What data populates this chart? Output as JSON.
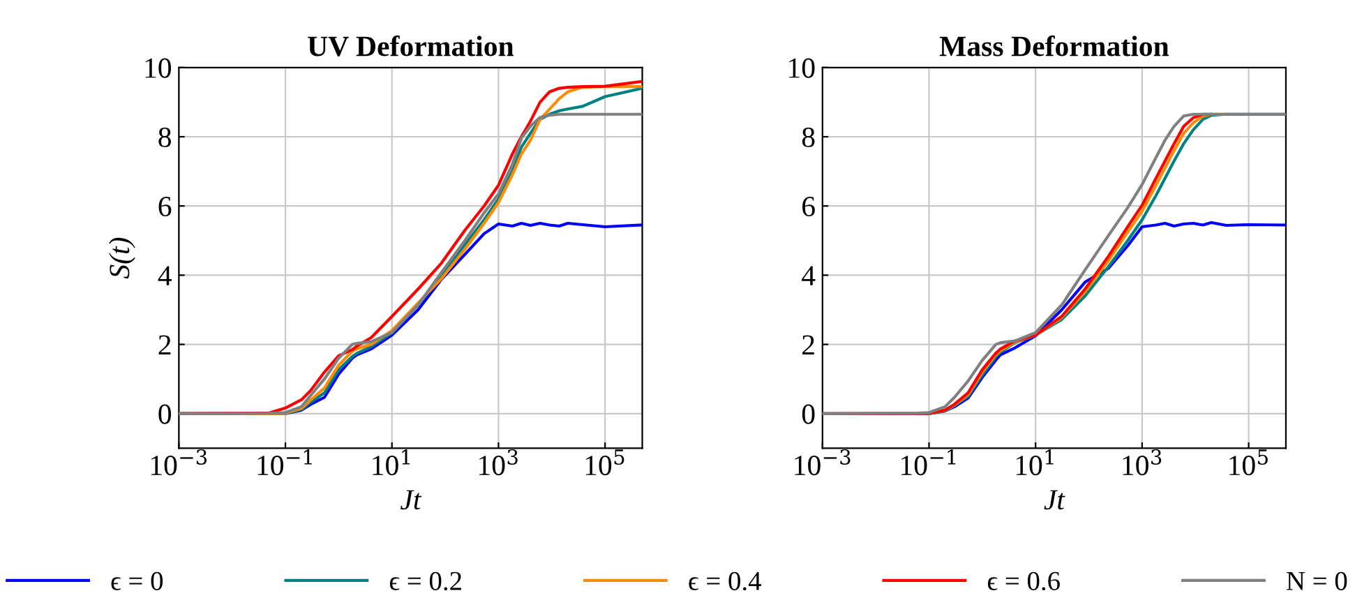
{
  "chart_data": [
    {
      "type": "line",
      "title": "UV Deformation",
      "xlabel": "Jt",
      "ylabel": "S(t)",
      "log": "x",
      "grid": true,
      "legend": "bottom",
      "line_style": "solid",
      "marker": "none",
      "xlim": [
        0.001,
        500000
      ],
      "ylim": [
        -1,
        10
      ],
      "xticks": [
        {
          "value": 0.001,
          "label": "10$^{−3}$"
        },
        {
          "value": 0.1,
          "label": "10$^{−1}$"
        },
        {
          "value": 10,
          "label": "10$^{1}$"
        },
        {
          "value": 1000,
          "label": "10$^{3}$"
        },
        {
          "value": 100000,
          "label": "10$^{5}$"
        }
      ],
      "yticks": [
        0,
        2,
        4,
        6,
        8,
        10
      ],
      "x": [
        0.001,
        0.05,
        0.1,
        0.2,
        0.3,
        0.54,
        1,
        1.8,
        2.2,
        4.1,
        10,
        31,
        85,
        234,
        537,
        1000,
        1820,
        2690,
        3980,
        6030,
        9120,
        13800,
        20000,
        38000,
        100000,
        500000
      ],
      "series": [
        {
          "name": "ϵ = 0",
          "color": "#0000ff",
          "values": [
            0,
            0,
            0,
            0.1,
            0.27,
            0.47,
            1.14,
            1.6,
            1.7,
            1.87,
            2.27,
            3.0,
            3.88,
            4.6,
            5.2,
            5.48,
            5.42,
            5.5,
            5.44,
            5.5,
            5.45,
            5.42,
            5.5,
            5.46,
            5.4,
            5.45
          ]
        },
        {
          "name": "ϵ = 0.2",
          "color": "#008080",
          "values": [
            0,
            0,
            0,
            0.12,
            0.33,
            0.6,
            1.27,
            1.65,
            1.74,
            1.94,
            2.34,
            3.14,
            4.0,
            4.88,
            5.6,
            6.2,
            7.0,
            7.7,
            8.1,
            8.5,
            8.65,
            8.75,
            8.8,
            8.88,
            9.16,
            9.4
          ]
        },
        {
          "name": "ϵ = 0.4",
          "color": "#ff8c00",
          "values": [
            0,
            0,
            0.01,
            0.15,
            0.4,
            0.74,
            1.4,
            1.8,
            1.87,
            2.0,
            2.4,
            3.2,
            3.9,
            4.75,
            5.5,
            6.1,
            6.9,
            7.5,
            7.9,
            8.5,
            8.8,
            9.1,
            9.3,
            9.43,
            9.45,
            9.45
          ]
        },
        {
          "name": "ϵ = 0.6",
          "color": "#ff0000",
          "values": [
            0,
            0.02,
            0.16,
            0.4,
            0.67,
            1.2,
            1.67,
            1.85,
            1.95,
            2.2,
            2.81,
            3.6,
            4.35,
            5.3,
            6.0,
            6.6,
            7.5,
            8.0,
            8.45,
            9.0,
            9.3,
            9.4,
            9.43,
            9.45,
            9.46,
            9.6
          ]
        },
        {
          "name": "N = 0",
          "color": "#808080",
          "values": [
            0,
            0.01,
            0.03,
            0.2,
            0.53,
            1.0,
            1.6,
            2.0,
            2.03,
            2.08,
            2.34,
            3.14,
            4.08,
            5.0,
            5.8,
            6.35,
            7.2,
            7.96,
            8.3,
            8.56,
            8.62,
            8.65,
            8.65,
            8.65,
            8.65,
            8.65
          ]
        }
      ]
    },
    {
      "type": "line",
      "title": "Mass Deformation",
      "xlabel": "Jt",
      "log": "x",
      "grid": true,
      "line_style": "solid",
      "marker": "none",
      "xlim": [
        0.001,
        500000
      ],
      "ylim": [
        -1,
        10
      ],
      "xticks": [
        {
          "value": 0.001,
          "label": "10$^{−3}$"
        },
        {
          "value": 0.1,
          "label": "10$^{−1}$"
        },
        {
          "value": 10,
          "label": "10$^{1}$"
        },
        {
          "value": 1000,
          "label": "10$^{3}$"
        },
        {
          "value": 100000,
          "label": "10$^{5}$"
        }
      ],
      "yticks": [
        0,
        2,
        4,
        6,
        8,
        10
      ],
      "x": [
        0.001,
        0.05,
        0.1,
        0.2,
        0.3,
        0.54,
        1,
        1.8,
        2.2,
        4.1,
        10,
        31,
        85,
        234,
        537,
        1000,
        1820,
        2690,
        3980,
        6030,
        9120,
        13800,
        20000,
        38000,
        100000,
        500000
      ],
      "series": [
        {
          "color": "#0000ff",
          "values": [
            null,
            null,
            0,
            0.08,
            0.2,
            0.45,
            1.05,
            1.55,
            1.7,
            1.9,
            2.25,
            3.0,
            3.8,
            4.2,
            4.85,
            5.4,
            5.45,
            5.5,
            5.42,
            5.48,
            5.5,
            5.45,
            5.52,
            5.44,
            5.46,
            5.45
          ]
        },
        {
          "color": "#008080",
          "values": [
            0,
            0,
            0,
            0.08,
            0.23,
            0.5,
            1.12,
            1.65,
            1.78,
            2.05,
            2.27,
            2.72,
            3.4,
            4.25,
            5.0,
            5.6,
            6.3,
            6.8,
            7.3,
            7.8,
            8.2,
            8.5,
            8.62,
            8.65,
            8.65,
            8.65
          ]
        },
        {
          "color": "#ff8c00",
          "values": [
            null,
            null,
            0.01,
            0.1,
            0.25,
            0.55,
            1.2,
            1.7,
            1.82,
            2.07,
            2.27,
            2.78,
            3.52,
            4.42,
            5.25,
            5.85,
            6.6,
            7.1,
            7.6,
            8.1,
            8.4,
            8.6,
            8.65,
            8.65,
            null,
            null
          ]
        },
        {
          "color": "#ff0000",
          "values": [
            0,
            0,
            0.01,
            0.1,
            0.27,
            0.6,
            1.27,
            1.75,
            1.87,
            2.1,
            2.27,
            2.81,
            3.6,
            4.55,
            5.4,
            6.02,
            6.8,
            7.3,
            7.8,
            8.3,
            8.55,
            8.65,
            8.65,
            null,
            null,
            null
          ]
        },
        {
          "color": "#808080",
          "values": [
            0,
            0.01,
            0.03,
            0.2,
            0.47,
            0.94,
            1.54,
            2.0,
            2.05,
            2.1,
            2.34,
            3.14,
            4.15,
            5.15,
            5.95,
            6.62,
            7.4,
            7.9,
            8.3,
            8.6,
            8.65,
            8.65,
            8.65,
            8.65,
            8.65,
            8.65
          ]
        }
      ]
    }
  ]
}
